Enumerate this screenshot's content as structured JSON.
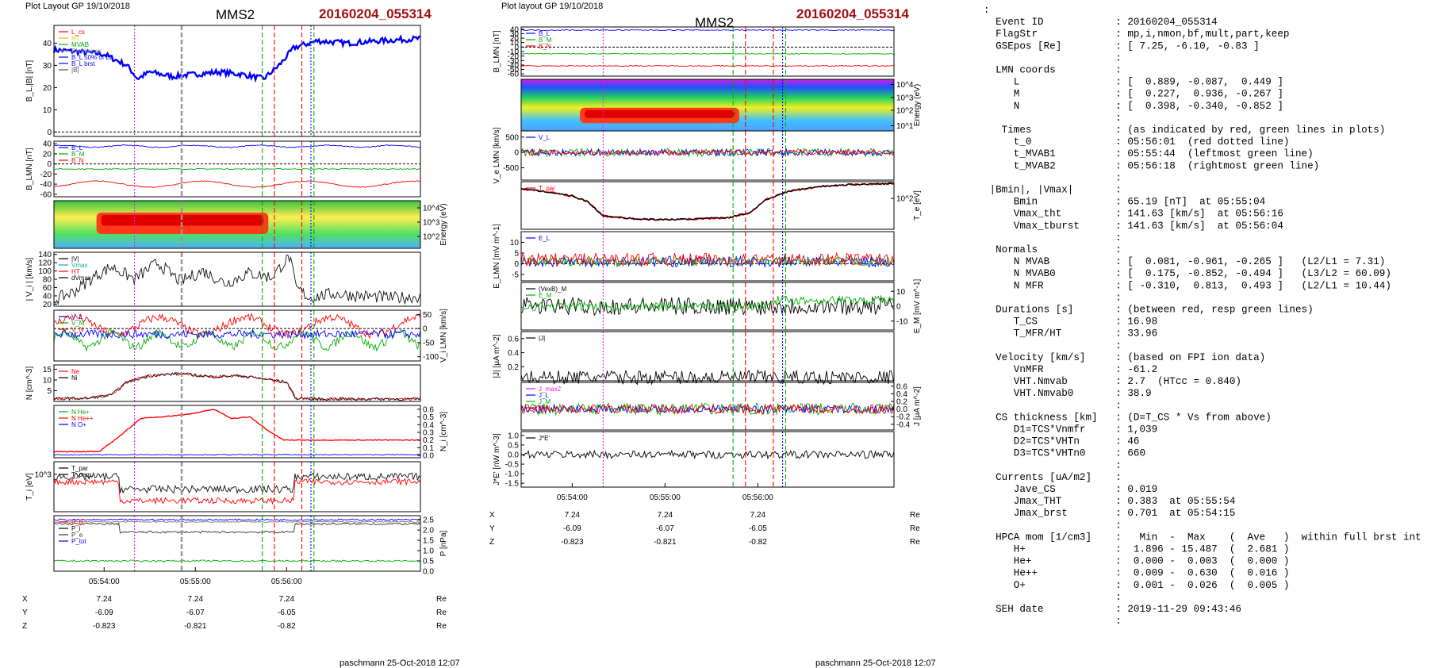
{
  "page": {
    "left_header": "Plot Layout GP 19/10/2018",
    "mid_header": "Plot layout GP 19/10/2018",
    "probe": "MMS2",
    "event_id": "20160204_055314",
    "footer": "paschmann 25-Oct-2018 12:07",
    "colors": {
      "title_red": "#a30f0f",
      "bx": "#0000ff",
      "by": "#00b000",
      "bz": "#ff0000",
      "black": "#000000",
      "magenta": "#e020e0"
    }
  },
  "chart_data": [
    {
      "type": "line",
      "id": "left_stack",
      "x_ticks": [
        "05:54:00",
        "05:55:00",
        "05:56:00"
      ],
      "event_lines": {
        "magenta_dotted": "05:54:20",
        "green_dashed_1": "05:55:44",
        "green_dashed_2": "05:56:18",
        "red_dashed_1": "05:55:52",
        "red_dashed_2": "05:56:10",
        "red_dashed_3": "05:56:01",
        "blue_dotted": "05:56:16",
        "grey_dashed": "05:54:51"
      },
      "panels": [
        {
          "name": "B_L |B|",
          "ylabel": "B_L,|B| [nT]",
          "yticks": [
            "0",
            "10",
            "20",
            "30",
            "40"
          ],
          "legend": [
            "L_cs",
            "HT",
            "MVAB",
            "BLminmax",
            "B_L 50% of BL",
            "B_L brst",
            "|B|"
          ]
        },
        {
          "name": "B_LMN",
          "ylabel": "B_LMN [nT]",
          "yticks": [
            "40",
            "20",
            "0",
            "-20",
            "-40",
            "-60"
          ],
          "legend": [
            "B_L",
            "B_M",
            "B_N"
          ]
        },
        {
          "name": "ion spectrogram",
          "ylabel": "Energy (eV)",
          "yticks": [
            "10^4",
            "10^3",
            "10^2"
          ]
        },
        {
          "name": "|Vi|",
          "ylabel": "| V_i | [km/s]",
          "yticks": [
            "20",
            "40",
            "60",
            "80",
            "100",
            "120",
            "140"
          ],
          "legend": [
            "|V|",
            "Vmax",
            "HT",
            "dVmax"
          ]
        },
        {
          "name": "Vi LMN",
          "ylabel": "V_i LMN [km/s]",
          "yticks": [
            "50",
            "0",
            "-50",
            "-100"
          ],
          "legend": [
            "V_L",
            "V_M",
            "V_N"
          ]
        },
        {
          "name": "N",
          "ylabel": "N [cm^-3]",
          "yticks": [
            "5",
            "10",
            "15"
          ],
          "legend": [
            "Ne",
            "Ni"
          ]
        },
        {
          "name": "Ni HPCA",
          "ylabel": "N_i [cm^-3]",
          "yticks": [
            "0.0",
            "0.1",
            "0.2",
            "0.3",
            "0.4",
            "0.5",
            "0.6"
          ],
          "legend": [
            "N He+",
            "N He++",
            "N O+"
          ]
        },
        {
          "name": "Ti",
          "ylabel": "T_i [eV]",
          "yticks": [
            "10^3"
          ],
          "legend": [
            "T_par",
            "T_perp"
          ]
        },
        {
          "name": "P",
          "ylabel": "P [nPa]",
          "yticks": [
            "0.0",
            "0.5",
            "1.0",
            "1.5",
            "2.0",
            "2.5"
          ],
          "legend": [
            "P_B",
            "P_i",
            "P_e",
            "P_tot"
          ]
        }
      ],
      "series": [
        {
          "name": "B_L",
          "x": [
            "05:53:27",
            "05:53:45",
            "05:54:00",
            "05:54:15",
            "05:54:22",
            "05:54:30",
            "05:54:45",
            "05:55:00",
            "05:55:15",
            "05:55:30",
            "05:55:45",
            "05:55:55",
            "05:56:05",
            "05:56:20",
            "05:56:40",
            "05:57:00",
            "05:57:26"
          ],
          "values": [
            37,
            36,
            35,
            30,
            24,
            27,
            25,
            26,
            27,
            26,
            24,
            30,
            38,
            41,
            40,
            41,
            42
          ]
        },
        {
          "name": "|B|",
          "x": [
            "05:53:27",
            "05:54:00",
            "05:54:20",
            "05:54:40",
            "05:55:00",
            "05:55:30",
            "05:55:55",
            "05:56:10",
            "05:56:40",
            "05:57:26"
          ],
          "values": [
            73,
            72,
            67,
            68,
            67,
            68,
            66,
            70,
            72,
            72
          ]
        },
        {
          "name": "|Vi|",
          "x": [
            "05:53:27",
            "05:53:40",
            "05:53:55",
            "05:54:05",
            "05:54:20",
            "05:54:35",
            "05:54:50",
            "05:55:05",
            "05:55:20",
            "05:55:35",
            "05:55:50",
            "05:56:02",
            "05:56:06",
            "05:56:15",
            "05:56:30",
            "05:56:50",
            "05:57:10",
            "05:57:26"
          ],
          "values": [
            30,
            50,
            90,
            110,
            80,
            120,
            75,
            100,
            70,
            95,
            85,
            135,
            60,
            35,
            45,
            40,
            35,
            38
          ]
        },
        {
          "name": "Ni",
          "x": [
            "05:53:27",
            "05:53:50",
            "05:54:05",
            "05:54:15",
            "05:54:30",
            "05:54:50",
            "05:55:10",
            "05:55:30",
            "05:55:50",
            "05:56:00",
            "05:56:06",
            "05:56:20",
            "05:57:26"
          ],
          "values": [
            1.2,
            1.5,
            3,
            9,
            12,
            13,
            11.5,
            12,
            10,
            9,
            1.5,
            1.2,
            1.1
          ]
        },
        {
          "name": "N He++",
          "x": [
            "05:53:57",
            "05:54:12",
            "05:54:24",
            "05:54:36",
            "05:54:48",
            "05:55:00",
            "05:55:12",
            "05:55:24",
            "05:55:36",
            "05:55:48",
            "05:55:58"
          ],
          "values": [
            0.05,
            0.28,
            0.48,
            0.5,
            0.52,
            0.55,
            0.6,
            0.48,
            0.5,
            0.32,
            0.2
          ]
        }
      ],
      "position_table": {
        "X": [
          "7.24",
          "7.24",
          "7.24"
        ],
        "Y": [
          "-6.09",
          "-6.07",
          "-6.05"
        ],
        "Z": [
          "-0.823",
          "-0.821",
          "-0.82"
        ],
        "unit": "Re"
      }
    },
    {
      "type": "line",
      "id": "middle_stack",
      "x_ticks": [
        "05:54:00",
        "05:55:00",
        "05:56:00"
      ],
      "panels": [
        {
          "name": "B_LMN",
          "ylabel": "B_LMN [nT]",
          "yticks": [
            "40",
            "30",
            "20",
            "10",
            "0",
            "-10",
            "-20",
            "-30",
            "-40",
            "-50",
            "-60"
          ],
          "legend": [
            "B_L",
            "B_M",
            "B_N"
          ]
        },
        {
          "name": "electron spectrogram",
          "ylabel": "Energy (eV)",
          "yticks": [
            "10^4",
            "10^3",
            "10^2",
            "10^1"
          ]
        },
        {
          "name": "Ve LMN",
          "ylabel": "V_e LMN [km/s]",
          "yticks": [
            "500",
            "0",
            "-500"
          ],
          "legend": [
            "V_L"
          ]
        },
        {
          "name": "Te",
          "ylabel": "T_e [eV]",
          "yticks": [
            "10^2"
          ],
          "legend": [
            "T_par"
          ]
        },
        {
          "name": "E LMN",
          "ylabel": "E_LMN [mV m^-1]",
          "yticks": [
            "10",
            "5",
            "0",
            "-5"
          ],
          "legend": [
            "E_L"
          ]
        },
        {
          "name": "E_M",
          "ylabel": "E_M [mV m^-1]",
          "yticks": [
            "10",
            "0",
            "-10"
          ],
          "legend": [
            "(VexB)_M",
            "E_M"
          ]
        },
        {
          "name": "|J|",
          "ylabel": "|J| [μA m^-2]",
          "yticks": [
            "0.6",
            "0.4",
            "0.2"
          ],
          "legend": [
            "|J|"
          ]
        },
        {
          "name": "J LMN",
          "ylabel": "J [μA m^-2]",
          "yticks": [
            "0.6",
            "0.4",
            "0.2",
            "0.0",
            "-0.2",
            "-0.4"
          ],
          "legend": [
            "J_max2",
            "J_L",
            "J_M",
            "J_N"
          ]
        },
        {
          "name": "J*E'",
          "ylabel": "J*E' [nW m^-3]",
          "yticks": [
            "1.0",
            "0.5",
            "0.0",
            "-0.5",
            "-1.0",
            "-1.5"
          ],
          "legend": [
            "J*E'"
          ]
        }
      ],
      "series": [
        {
          "name": "T_e",
          "x": [
            "05:53:27",
            "05:53:45",
            "05:54:00",
            "05:54:10",
            "05:54:20",
            "05:54:40",
            "05:55:00",
            "05:55:20",
            "05:55:40",
            "05:55:55",
            "05:56:05",
            "05:56:20",
            "05:56:40",
            "05:57:00",
            "05:57:30"
          ],
          "values": [
            0.85,
            0.78,
            0.7,
            0.58,
            0.28,
            0.22,
            0.2,
            0.22,
            0.24,
            0.35,
            0.62,
            0.8,
            0.9,
            0.94,
            0.96
          ]
        }
      ],
      "position_table": {
        "X": [
          "7.24",
          "7.24",
          "7.24"
        ],
        "Y": [
          "-6.09",
          "-6.07",
          "-6.05"
        ],
        "Z": [
          "-0.823",
          "-0.821",
          "-0.82"
        ],
        "unit": "Re"
      }
    }
  ],
  "summary": {
    "lines": [
      ":",
      "  Event ID            : 20160204_055314",
      "  FlagStr             : mp,i,nmon,bf,mult,part,keep",
      "  GSEpos [Re]         : [ 7.25, -6.10, -0.83 ]",
      "                      :",
      "  LMN coords          :",
      "     L                : [  0.889, -0.087,  0.449 ]",
      "     M                : [  0.227,  0.936, -0.267 ]",
      "     N                : [  0.398, -0.340, -0.852 ]",
      "                      :",
      "   Times              : (as indicated by red, green lines in plots)",
      "     t_0              : 05:56:01  (red dotted line)",
      "     t_MVAB1          : 05:55:44  (leftmost green line)",
      "     t_MVAB2          : 05:56:18  (rightmost green line)",
      "                      :",
      " |Bmin|, |Vmax|       :",
      "     Bmin             : 65.19 [nT]  at 05:55:04",
      "     Vmax_tht         : 141.63 [km/s]  at 05:56:16",
      "     Vmax_tburst      : 141.63 [km/s]  at 05:56:04",
      "                      :",
      "  Normals             :",
      "     N MVAB           : [  0.081, -0.961, -0.265 ]   (L2/L1 = 7.31)",
      "     N MVAB0          : [  0.175, -0.852, -0.494 ]   (L3/L2 = 60.09)",
      "     N MFR            : [ -0.310,  0.813,  0.493 ]   (L2/L1 = 10.44)",
      "                      :",
      "  Durations [s]       : (between red, resp green lines)",
      "     T_CS             : 16.98",
      "     T_MFR/HT         : 33.96",
      "                      :",
      "  Velocity [km/s]     : (based on FPI ion data)",
      "     VnMFR            : -61.2",
      "     VHT.Nmvab        : 2.7  (HTcc = 0.840)",
      "     VHT.Nmvab0       : 38.9",
      "                      :",
      "  CS thickness [km]   : (D=T_CS * Vs from above)",
      "     D1=TCS*Vnmfr     : 1,039",
      "     D2=TCS*VHTn      : 46",
      "     D3=TCS*VHTn0     : 660",
      "                      :",
      "  Currents [uA/m2]    :",
      "     Jave_CS          : 0.019",
      "     Jmax_THT         : 0.383  at 05:55:54",
      "     Jmax_brst        : 0.701  at 05:54:15",
      "                      :",
      "  HPCA mom [1/cm3]    :   Min  -  Max    (  Ave   )  within full brst int",
      "     H+               :  1.896 - 15.487  (  2.681 )",
      "     He+              :  0.000 -  0.003  (  0.000 )",
      "     He++             :  0.009 -  0.630  (  0.016 )",
      "     O+               :  0.001 -  0.026  (  0.005 )",
      "                      :",
      "  SEH date            : 2019-11-29 09:43:46",
      "                      :"
    ]
  }
}
